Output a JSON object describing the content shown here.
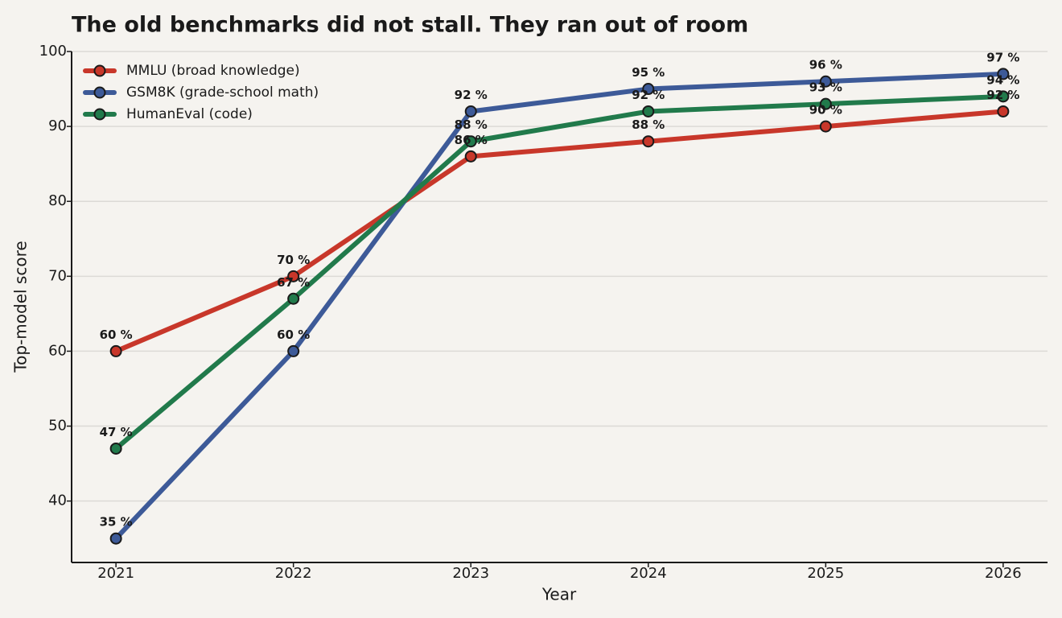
{
  "chart_data": {
    "type": "line",
    "title": "The old benchmarks did not stall. They ran out of room",
    "x_label": "Year",
    "y_label": "Top-model score",
    "x": [
      2021,
      2022,
      2023,
      2024,
      2025,
      2026
    ],
    "xlim": [
      2020.75,
      2026.25
    ],
    "xticks": [
      2021,
      2022,
      2023,
      2024,
      2025,
      2026
    ],
    "ylim": [
      31.8,
      100
    ],
    "yticks": [
      40,
      50,
      60,
      70,
      80,
      90,
      100
    ],
    "grid": true,
    "legend": "upper left",
    "series": [
      {
        "name": "MMLU (broad knowledge)",
        "color": "#c8372a",
        "values": [
          60,
          70,
          86,
          88,
          90,
          92
        ],
        "value_labels": [
          "60 %",
          "70 %",
          "86 %",
          "88 %",
          "90 %",
          "92 %"
        ]
      },
      {
        "name": "GSM8K (grade-school math)",
        "color": "#3d5a98",
        "values": [
          35,
          60,
          92,
          95,
          96,
          97
        ],
        "value_labels": [
          "35 %",
          "60 %",
          "92 %",
          "95 %",
          "96 %",
          "97 %"
        ]
      },
      {
        "name": "HumanEval (code)",
        "color": "#217a4b",
        "values": [
          47,
          67,
          88,
          92,
          93,
          94
        ],
        "value_labels": [
          "47 %",
          "67 %",
          "88 %",
          "92 %",
          "93 %",
          "94 %"
        ]
      }
    ]
  }
}
